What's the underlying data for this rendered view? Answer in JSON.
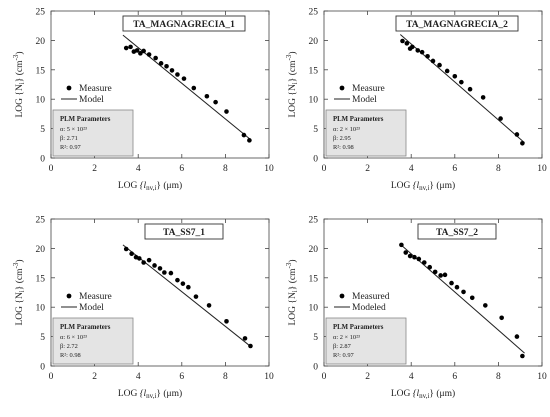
{
  "chart_data": [
    {
      "type": "scatter",
      "title": "TA_MAGNAGRECIA_1",
      "xlabel_prefix": "LOG",
      "xlabel_var": "{l",
      "xlabel_sub": "nv,i",
      "xlabel_suffix": "}  (μm)",
      "ylabel": "LOG {N",
      "ylabel_sub": "i",
      "ylabel_unit": "}  (cm",
      "ylabel_sup": "-3",
      "ylabel_close": ")",
      "xlim": [
        0,
        10
      ],
      "ylim": [
        0,
        25
      ],
      "xticks": [
        "0",
        "2",
        "4",
        "6",
        "8",
        "10"
      ],
      "yticks": [
        "0",
        "5",
        "10",
        "15",
        "20",
        "25"
      ],
      "legend": {
        "measure": "Measure",
        "model": "Model"
      },
      "params": {
        "heading": "PLM Parameters",
        "alpha": "α: 5 × 10²³",
        "beta": "β: 2.71",
        "r2": "R²: 0.97"
      },
      "series": [
        {
          "name": "Measure",
          "points": [
            [
              3.45,
              18.7
            ],
            [
              3.65,
              18.9
            ],
            [
              3.8,
              18.1
            ],
            [
              3.95,
              18.3
            ],
            [
              4.1,
              17.8
            ],
            [
              4.25,
              18.2
            ],
            [
              4.5,
              17.6
            ],
            [
              4.8,
              17.0
            ],
            [
              5.05,
              16.1
            ],
            [
              5.3,
              15.6
            ],
            [
              5.55,
              14.9
            ],
            [
              5.8,
              14.2
            ],
            [
              6.1,
              13.5
            ],
            [
              6.55,
              11.9
            ],
            [
              7.15,
              10.5
            ],
            [
              7.55,
              9.5
            ],
            [
              8.05,
              7.9
            ],
            [
              8.85,
              3.9
            ],
            [
              9.1,
              3.0
            ]
          ]
        },
        {
          "name": "Model",
          "line": [
            [
              3.3,
              20.9
            ],
            [
              9.2,
              3.0
            ]
          ]
        }
      ]
    },
    {
      "type": "scatter",
      "title": "TA_MAGNAGRECIA_2",
      "xlabel_prefix": "LOG",
      "xlabel_var": "{l",
      "xlabel_sub": "nv,i",
      "xlabel_suffix": "}  (μm)",
      "ylabel": "LOG {N",
      "ylabel_sub": "i",
      "ylabel_unit": "}  (cm",
      "ylabel_sup": "-3",
      "ylabel_close": ")",
      "xlim": [
        0,
        10
      ],
      "ylim": [
        0,
        25
      ],
      "xticks": [
        "0",
        "2",
        "4",
        "6",
        "8",
        "10"
      ],
      "yticks": [
        "0",
        "5",
        "10",
        "15",
        "20",
        "25"
      ],
      "legend": {
        "measure": "Measure",
        "model": "Model"
      },
      "params": {
        "heading": "PLM Parameters",
        "alpha": "α: 2 × 10²³",
        "beta": "β: 2.95",
        "r2": "R²: 0.98"
      },
      "series": [
        {
          "name": "Measure",
          "points": [
            [
              3.6,
              19.9
            ],
            [
              3.8,
              19.5
            ],
            [
              3.95,
              18.6
            ],
            [
              4.05,
              18.9
            ],
            [
              4.3,
              18.3
            ],
            [
              4.5,
              18.0
            ],
            [
              4.75,
              17.3
            ],
            [
              5.0,
              16.5
            ],
            [
              5.3,
              15.8
            ],
            [
              5.65,
              14.8
            ],
            [
              6.0,
              13.9
            ],
            [
              6.3,
              12.9
            ],
            [
              6.7,
              11.7
            ],
            [
              7.3,
              10.3
            ],
            [
              8.1,
              6.7
            ],
            [
              8.85,
              4.0
            ],
            [
              9.1,
              2.5
            ]
          ]
        },
        {
          "name": "Model",
          "line": [
            [
              3.5,
              21.0
            ],
            [
              9.2,
              2.6
            ]
          ]
        }
      ]
    },
    {
      "type": "scatter",
      "title": "TA_SS7_1",
      "xlabel_prefix": "LOG",
      "xlabel_var": "{l",
      "xlabel_sub": "nv,i",
      "xlabel_suffix": "}  (μm)",
      "ylabel": "LOG {N",
      "ylabel_sub": "i",
      "ylabel_unit": "}  (cm",
      "ylabel_sup": "-3",
      "ylabel_close": ")",
      "xlim": [
        0,
        10
      ],
      "ylim": [
        0,
        25
      ],
      "xticks": [
        "0",
        "2",
        "4",
        "6",
        "8",
        "10"
      ],
      "yticks": [
        "0",
        "5",
        "10",
        "15",
        "20",
        "25"
      ],
      "legend": {
        "measure": "Measure",
        "model": "Model"
      },
      "params": {
        "heading": "PLM Parameters",
        "alpha": "α: 6 × 10²³",
        "beta": "β: 2.72",
        "r2": "R²: 0.98"
      },
      "series": [
        {
          "name": "Measure",
          "points": [
            [
              3.45,
              19.9
            ],
            [
              3.7,
              19.1
            ],
            [
              3.9,
              18.5
            ],
            [
              4.05,
              18.3
            ],
            [
              4.25,
              17.6
            ],
            [
              4.5,
              18.0
            ],
            [
              4.75,
              17.1
            ],
            [
              5.0,
              16.6
            ],
            [
              5.2,
              15.9
            ],
            [
              5.5,
              15.8
            ],
            [
              5.8,
              14.6
            ],
            [
              6.05,
              14.0
            ],
            [
              6.3,
              13.4
            ],
            [
              6.65,
              11.8
            ],
            [
              7.25,
              10.3
            ],
            [
              8.05,
              7.6
            ],
            [
              8.9,
              4.7
            ],
            [
              9.15,
              3.4
            ]
          ]
        },
        {
          "name": "Model",
          "line": [
            [
              3.3,
              20.6
            ],
            [
              9.2,
              3.2
            ]
          ]
        }
      ]
    },
    {
      "type": "scatter",
      "title": "TA_SS7_2",
      "xlabel_prefix": "LOG",
      "xlabel_var": "{l",
      "xlabel_sub": "nv,i",
      "xlabel_suffix": "}  (μm)",
      "ylabel": "LOG {N",
      "ylabel_sub": "i",
      "ylabel_unit": "}  (cm",
      "ylabel_sup": "-3",
      "ylabel_close": ")",
      "xlim": [
        0,
        10
      ],
      "ylim": [
        0,
        25
      ],
      "xticks": [
        "0",
        "2",
        "4",
        "6",
        "8",
        "10"
      ],
      "yticks": [
        "0",
        "5",
        "10",
        "15",
        "20",
        "25"
      ],
      "legend": {
        "measure": "Measured",
        "model": "Modeled"
      },
      "params": {
        "heading": "PLM Parameters",
        "alpha": "α: 2 × 10²³",
        "beta": "β: 2.87",
        "r2": "R²: 0.97"
      },
      "series": [
        {
          "name": "Measured",
          "points": [
            [
              3.55,
              20.6
            ],
            [
              3.75,
              19.3
            ],
            [
              3.95,
              18.7
            ],
            [
              4.15,
              18.5
            ],
            [
              4.35,
              18.2
            ],
            [
              4.6,
              17.6
            ],
            [
              4.85,
              16.8
            ],
            [
              5.1,
              16.0
            ],
            [
              5.35,
              15.4
            ],
            [
              5.55,
              15.5
            ],
            [
              5.85,
              14.1
            ],
            [
              6.1,
              13.4
            ],
            [
              6.4,
              12.6
            ],
            [
              6.8,
              11.6
            ],
            [
              7.4,
              10.3
            ],
            [
              8.15,
              8.2
            ],
            [
              8.85,
              5.0
            ],
            [
              9.1,
              1.7
            ]
          ]
        },
        {
          "name": "Modeled",
          "line": [
            [
              3.5,
              20.7
            ],
            [
              9.2,
              2.2
            ]
          ]
        }
      ]
    }
  ]
}
